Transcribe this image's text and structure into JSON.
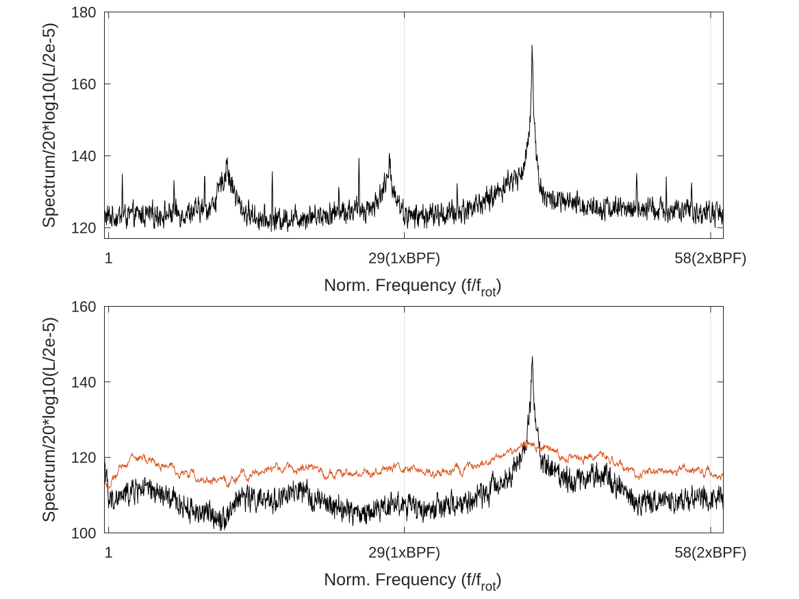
{
  "chart_data": [
    {
      "type": "line",
      "xlabel": "Norm. Frequency (f/f",
      "xlabel_sub": "rot",
      "xlabel_close": ")",
      "ylabel": "Spectrum/20*log10(L/2e-5)",
      "xlim": [
        0.6,
        59.2
      ],
      "ylim": [
        117,
        180
      ],
      "xticks": [
        1,
        29,
        58
      ],
      "xticklabels": [
        "1",
        "29(1xBPF)",
        "58(2xBPF)"
      ],
      "yticks": [
        120,
        140,
        160,
        180
      ],
      "yticklabels": [
        "120",
        "140",
        "160",
        "180"
      ],
      "grid": "vertical",
      "series": [
        {
          "color": "#000000",
          "noise_floor": [
            [
              0.6,
              123
            ],
            [
              8,
              124
            ],
            [
              12,
              126
            ],
            [
              16,
              122
            ],
            [
              22,
              124
            ],
            [
              27,
              126
            ],
            [
              29,
              123
            ],
            [
              34,
              124
            ],
            [
              37,
              128
            ],
            [
              39,
              133
            ],
            [
              40.2,
              134
            ],
            [
              42,
              128
            ],
            [
              46,
              126
            ],
            [
              52,
              125
            ],
            [
              59.2,
              124
            ]
          ],
          "peaks": [
            {
              "x": 41.1,
              "y": 176,
              "kind": "tonal"
            },
            {
              "x": 12.2,
              "y": 140,
              "kind": "hump"
            },
            {
              "x": 27.6,
              "y": 138,
              "kind": "hump"
            },
            {
              "x": 2.3,
              "y": 136
            },
            {
              "x": 7.2,
              "y": 134
            },
            {
              "x": 10.1,
              "y": 135
            },
            {
              "x": 16.5,
              "y": 136
            },
            {
              "x": 22.8,
              "y": 136
            },
            {
              "x": 24.7,
              "y": 137
            },
            {
              "x": 34.0,
              "y": 133
            },
            {
              "x": 51.0,
              "y": 138
            },
            {
              "x": 53.8,
              "y": 134
            },
            {
              "x": 56.2,
              "y": 133
            }
          ]
        }
      ]
    },
    {
      "type": "line",
      "xlabel": "Norm. Frequency (f/f",
      "xlabel_sub": "rot",
      "xlabel_close": ")",
      "ylabel": "Spectrum/20*log10(L/2e-5)",
      "xlim": [
        0.6,
        59.2
      ],
      "ylim": [
        100,
        160
      ],
      "xticks": [
        1,
        29,
        58
      ],
      "xticklabels": [
        "1",
        "29(1xBPF)",
        "58(2xBPF)"
      ],
      "yticks": [
        100,
        120,
        140,
        160
      ],
      "yticklabels": [
        "100",
        "120",
        "140",
        "160"
      ],
      "grid": "vertical",
      "series": [
        {
          "color": "#000000",
          "noise_floor": [
            [
              0.6,
              120
            ],
            [
              1,
              108
            ],
            [
              4,
              112
            ],
            [
              6,
              110
            ],
            [
              9,
              106
            ],
            [
              12,
              104
            ],
            [
              13.5,
              110
            ],
            [
              16,
              108
            ],
            [
              19,
              111
            ],
            [
              22,
              107
            ],
            [
              25,
              105
            ],
            [
              28,
              108
            ],
            [
              31,
              106
            ],
            [
              35,
              108
            ],
            [
              38,
              113
            ],
            [
              40.5,
              120
            ],
            [
              41.1,
              125
            ],
            [
              42,
              118
            ],
            [
              45,
              114
            ],
            [
              48,
              116
            ],
            [
              51,
              108
            ],
            [
              55,
              109
            ],
            [
              59.2,
              110
            ]
          ],
          "peaks": [
            {
              "x": 41.1,
              "y": 150,
              "kind": "tonal"
            }
          ]
        },
        {
          "color": "#D95319",
          "noise_floor": [
            [
              0.6,
              114
            ],
            [
              1,
              112
            ],
            [
              3,
              120
            ],
            [
              5,
              119
            ],
            [
              7,
              117
            ],
            [
              9,
              115
            ],
            [
              12,
              113
            ],
            [
              13.5,
              115
            ],
            [
              16,
              117
            ],
            [
              20,
              117
            ],
            [
              24,
              115
            ],
            [
              28,
              117
            ],
            [
              32,
              116
            ],
            [
              36,
              117
            ],
            [
              38.5,
              121
            ],
            [
              41.1,
              124
            ],
            [
              44,
              120
            ],
            [
              48,
              120
            ],
            [
              51,
              116
            ],
            [
              55,
              117
            ],
            [
              59.2,
              115
            ]
          ],
          "peaks": []
        }
      ]
    }
  ]
}
